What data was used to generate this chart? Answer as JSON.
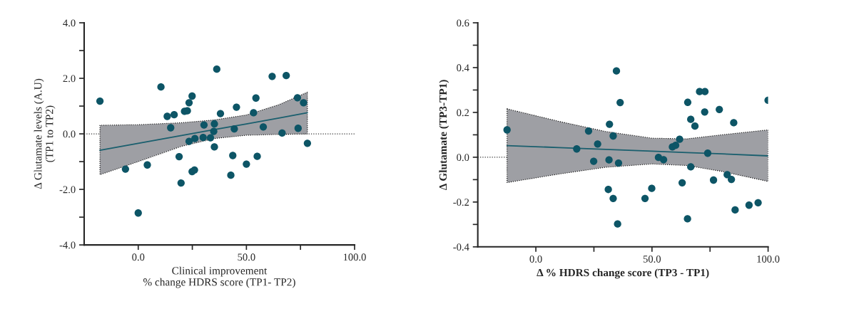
{
  "chart_data": [
    {
      "type": "scatter",
      "xlabel": "Clinical improvement\n% change HDRS score (TP1- TP2)",
      "ylabel": "Δ Glutamate levels (A.U)\n(TP1 to TP2)",
      "xlim": [
        -25,
        100
      ],
      "ylim": [
        -4,
        4
      ],
      "xticks": [
        {
          "value": 0,
          "label": "0.0"
        },
        {
          "value": 25,
          "label": null
        },
        {
          "value": 50,
          "label": "50.0"
        },
        {
          "value": 75,
          "label": null
        },
        {
          "value": 100,
          "label": "100.0"
        }
      ],
      "yticks": [
        {
          "value": -4,
          "label": "-4.0"
        },
        {
          "value": -3,
          "label": null
        },
        {
          "value": -2,
          "label": "-2.0"
        },
        {
          "value": -1,
          "label": null
        },
        {
          "value": 0,
          "label": "0.0"
        },
        {
          "value": 1,
          "label": null
        },
        {
          "value": 2,
          "label": "2.0"
        },
        {
          "value": 3,
          "label": null
        },
        {
          "value": 4,
          "label": "4.0"
        }
      ],
      "grid": false,
      "ref_lines": [
        {
          "axis": "y",
          "value": 0,
          "line_style": "dotted",
          "color": "#333333"
        }
      ],
      "series": [
        {
          "marker": "circle",
          "color": "#0d5566",
          "x": [
            -17.7,
            10.5,
            -5.9,
            4.2,
            0.0,
            13.4,
            16.6,
            15.0,
            18.9,
            19.8,
            21.4,
            22.7,
            23.5,
            24.9,
            23.5,
            26.2,
            24.9,
            26.0,
            30.0,
            30.4,
            33.4,
            35.2,
            34.9,
            35.2,
            36.3,
            38.0,
            43.7,
            42.8,
            44.4,
            45.4,
            50.0,
            53.3,
            54.4,
            55.0,
            57.8,
            61.9,
            66.5,
            68.4,
            73.6,
            73.9,
            76.4,
            78.2
          ],
          "values": [
            1.18,
            1.69,
            -1.27,
            -1.12,
            -2.85,
            0.63,
            0.69,
            0.22,
            -0.82,
            -1.77,
            0.81,
            0.83,
            1.12,
            1.36,
            -0.27,
            -0.17,
            -1.36,
            -1.3,
            -0.13,
            0.32,
            -0.14,
            0.36,
            0.09,
            -0.47,
            2.33,
            0.73,
            -0.78,
            -1.49,
            0.18,
            0.96,
            -1.09,
            0.76,
            1.29,
            -0.81,
            0.25,
            2.07,
            0.03,
            2.1,
            1.3,
            0.2,
            1.12,
            -0.34
          ]
        },
        {
          "type": "line",
          "marker": "none",
          "color": "#1a5f6e",
          "x": [
            -17.7,
            0,
            20,
            35,
            50,
            65,
            78.2
          ],
          "values": [
            -0.59,
            -0.34,
            -0.06,
            0.15,
            0.36,
            0.57,
            0.76
          ],
          "lower": [
            -1.47,
            -1.0,
            -0.45,
            -0.17,
            -0.05,
            -0.02,
            0.0
          ],
          "upper": [
            0.31,
            0.33,
            0.4,
            0.5,
            0.68,
            1.05,
            1.5
          ]
        }
      ]
    },
    {
      "type": "scatter",
      "xlabel": "Δ % HDRS change score (TP3 - TP1)",
      "ylabel": "Δ Glutamate (TP3-TP1)",
      "xlim": [
        -25,
        100
      ],
      "ylim": [
        -0.4,
        0.6
      ],
      "xticks": [
        {
          "value": 0,
          "label": "0.0"
        },
        {
          "value": 25,
          "label": null
        },
        {
          "value": 50,
          "label": "50.0"
        },
        {
          "value": 75,
          "label": null
        },
        {
          "value": 100,
          "label": "100.0"
        }
      ],
      "yticks": [
        {
          "value": -0.4,
          "label": "-0.4"
        },
        {
          "value": -0.3,
          "label": null
        },
        {
          "value": -0.2,
          "label": "-0.2"
        },
        {
          "value": -0.1,
          "label": null
        },
        {
          "value": 0,
          "label": "0.0"
        },
        {
          "value": 0.1,
          "label": null
        },
        {
          "value": 0.2,
          "label": "0.2"
        },
        {
          "value": 0.3,
          "label": null
        },
        {
          "value": 0.4,
          "label": "0.4"
        },
        {
          "value": 0.5,
          "label": null
        },
        {
          "value": 0.6,
          "label": "0.6"
        }
      ],
      "grid": false,
      "ref_lines": [
        {
          "axis": "y",
          "value": 0,
          "line_style": "dotted",
          "color": "#333333"
        }
      ],
      "series": [
        {
          "marker": "circle",
          "color": "#0d5566",
          "x": [
            -12.4,
            17.6,
            22.7,
            26.6,
            24.9,
            31.7,
            33.3,
            31.5,
            35.6,
            34.7,
            36.3,
            31.2,
            33.3,
            35.2,
            47.0,
            49.9,
            52.8,
            55.0,
            58.8,
            60.2,
            61.9,
            63.0,
            65.4,
            65.3,
            66.7,
            66.7,
            68.5,
            70.5,
            72.8,
            72.7,
            74.0,
            76.5,
            79.0,
            82.4,
            84.2,
            85.2,
            85.8,
            91.8,
            95.7,
            100.0
          ],
          "values": [
            0.122,
            0.037,
            0.117,
            0.059,
            -0.018,
            0.147,
            0.095,
            -0.012,
            -0.026,
            0.385,
            0.244,
            -0.144,
            -0.184,
            -0.298,
            -0.184,
            -0.139,
            -0.001,
            -0.011,
            0.046,
            0.053,
            0.08,
            -0.114,
            0.245,
            -0.275,
            0.169,
            -0.043,
            0.139,
            0.293,
            0.293,
            0.202,
            0.018,
            -0.102,
            0.213,
            -0.078,
            -0.099,
            0.154,
            -0.235,
            -0.214,
            -0.203,
            0.254
          ]
        },
        {
          "type": "line",
          "marker": "none",
          "color": "#1a5f6e",
          "x": [
            -12.4,
            10,
            30,
            50,
            65,
            80,
            100
          ],
          "values": [
            0.052,
            0.043,
            0.035,
            0.027,
            0.021,
            0.015,
            0.006
          ],
          "lower": [
            -0.113,
            -0.075,
            -0.045,
            -0.03,
            -0.037,
            -0.063,
            -0.108
          ],
          "upper": [
            0.216,
            0.16,
            0.115,
            0.085,
            0.082,
            0.1,
            0.122
          ]
        }
      ]
    }
  ]
}
